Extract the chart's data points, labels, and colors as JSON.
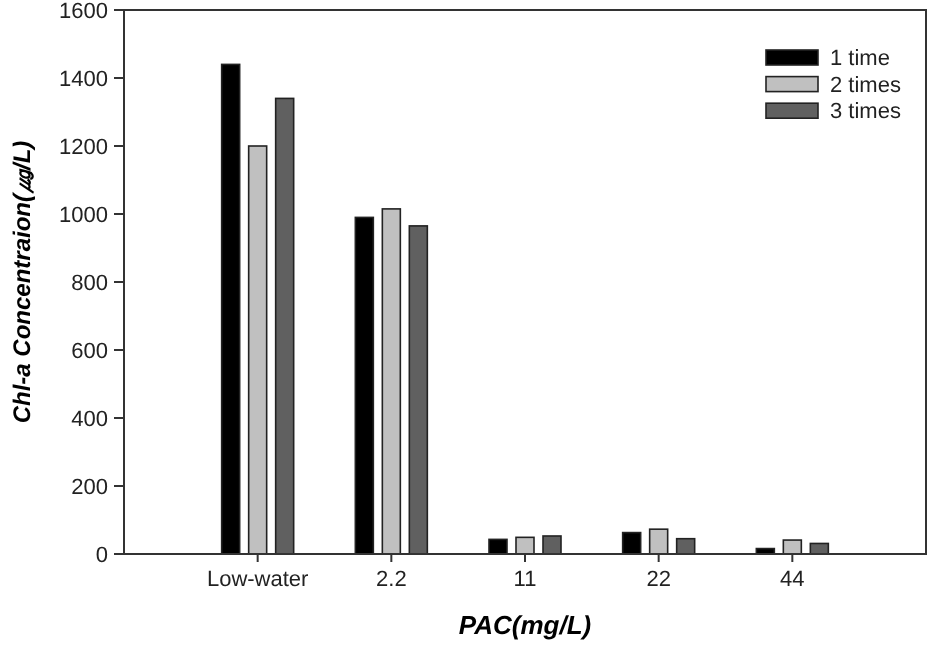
{
  "chart_data": {
    "type": "bar",
    "xlabel": "PAC(mg/L)",
    "ylabel": "Chl-a Concentraion(㎍/L)",
    "categories": [
      "Low-water",
      "2.2",
      "11",
      "22",
      "44"
    ],
    "series": [
      {
        "name": "1 time",
        "color": "#000000",
        "values": [
          1440,
          990,
          43,
          63,
          16
        ]
      },
      {
        "name": "2 times",
        "color": "#c0c0c0",
        "values": [
          1200,
          1015,
          49,
          73,
          41
        ]
      },
      {
        "name": "3 times",
        "color": "#606060",
        "values": [
          1340,
          965,
          53,
          45,
          31
        ]
      }
    ],
    "ylim": [
      0,
      1600
    ],
    "yticks": [
      0,
      200,
      400,
      600,
      800,
      1000,
      1200,
      1400,
      1600
    ],
    "legend": "top right",
    "grid": false
  }
}
